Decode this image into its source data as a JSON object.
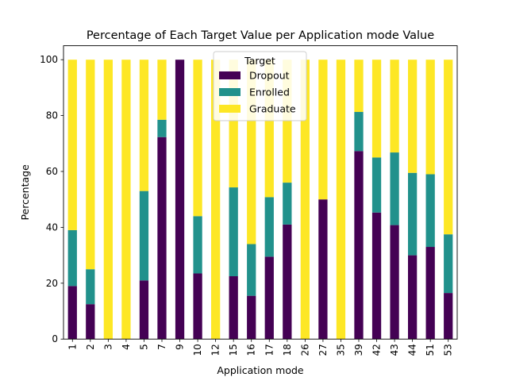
{
  "chart_data": {
    "type": "bar",
    "stacked": true,
    "title": "Percentage of Each Target Value per Application mode Value",
    "xlabel": "Application mode",
    "ylabel": "Percentage",
    "ylim": [
      0,
      105
    ],
    "yticks": [
      0,
      20,
      40,
      60,
      80,
      100
    ],
    "grid": false,
    "legend": {
      "title": "Target",
      "placement": "top-center"
    },
    "categories": [
      "1",
      "2",
      "3",
      "4",
      "5",
      "7",
      "9",
      "10",
      "12",
      "15",
      "16",
      "17",
      "18",
      "26",
      "27",
      "35",
      "39",
      "42",
      "43",
      "44",
      "51",
      "53"
    ],
    "series": [
      {
        "name": "Dropout",
        "color": "#440154",
        "values": [
          19,
          12.5,
          0,
          0,
          21,
          72.3,
          100,
          23.5,
          0,
          22.5,
          15.5,
          29.5,
          41,
          0,
          50,
          0,
          67.3,
          45.3,
          40.8,
          30,
          33,
          16.5
        ]
      },
      {
        "name": "Enrolled",
        "color": "#21918c",
        "values": [
          20,
          12.5,
          0,
          0,
          32,
          6.2,
          0,
          20.5,
          0,
          31.8,
          18.5,
          21.3,
          15,
          0,
          0,
          0,
          14,
          19.7,
          26,
          29.5,
          26,
          21
        ]
      },
      {
        "name": "Graduate",
        "color": "#fde725",
        "values": [
          61,
          75,
          100,
          100,
          47,
          21.5,
          0,
          56,
          100,
          45.7,
          66,
          49.2,
          44,
          100,
          50,
          100,
          18.7,
          35,
          33.2,
          40.5,
          41,
          62.5
        ]
      }
    ]
  }
}
